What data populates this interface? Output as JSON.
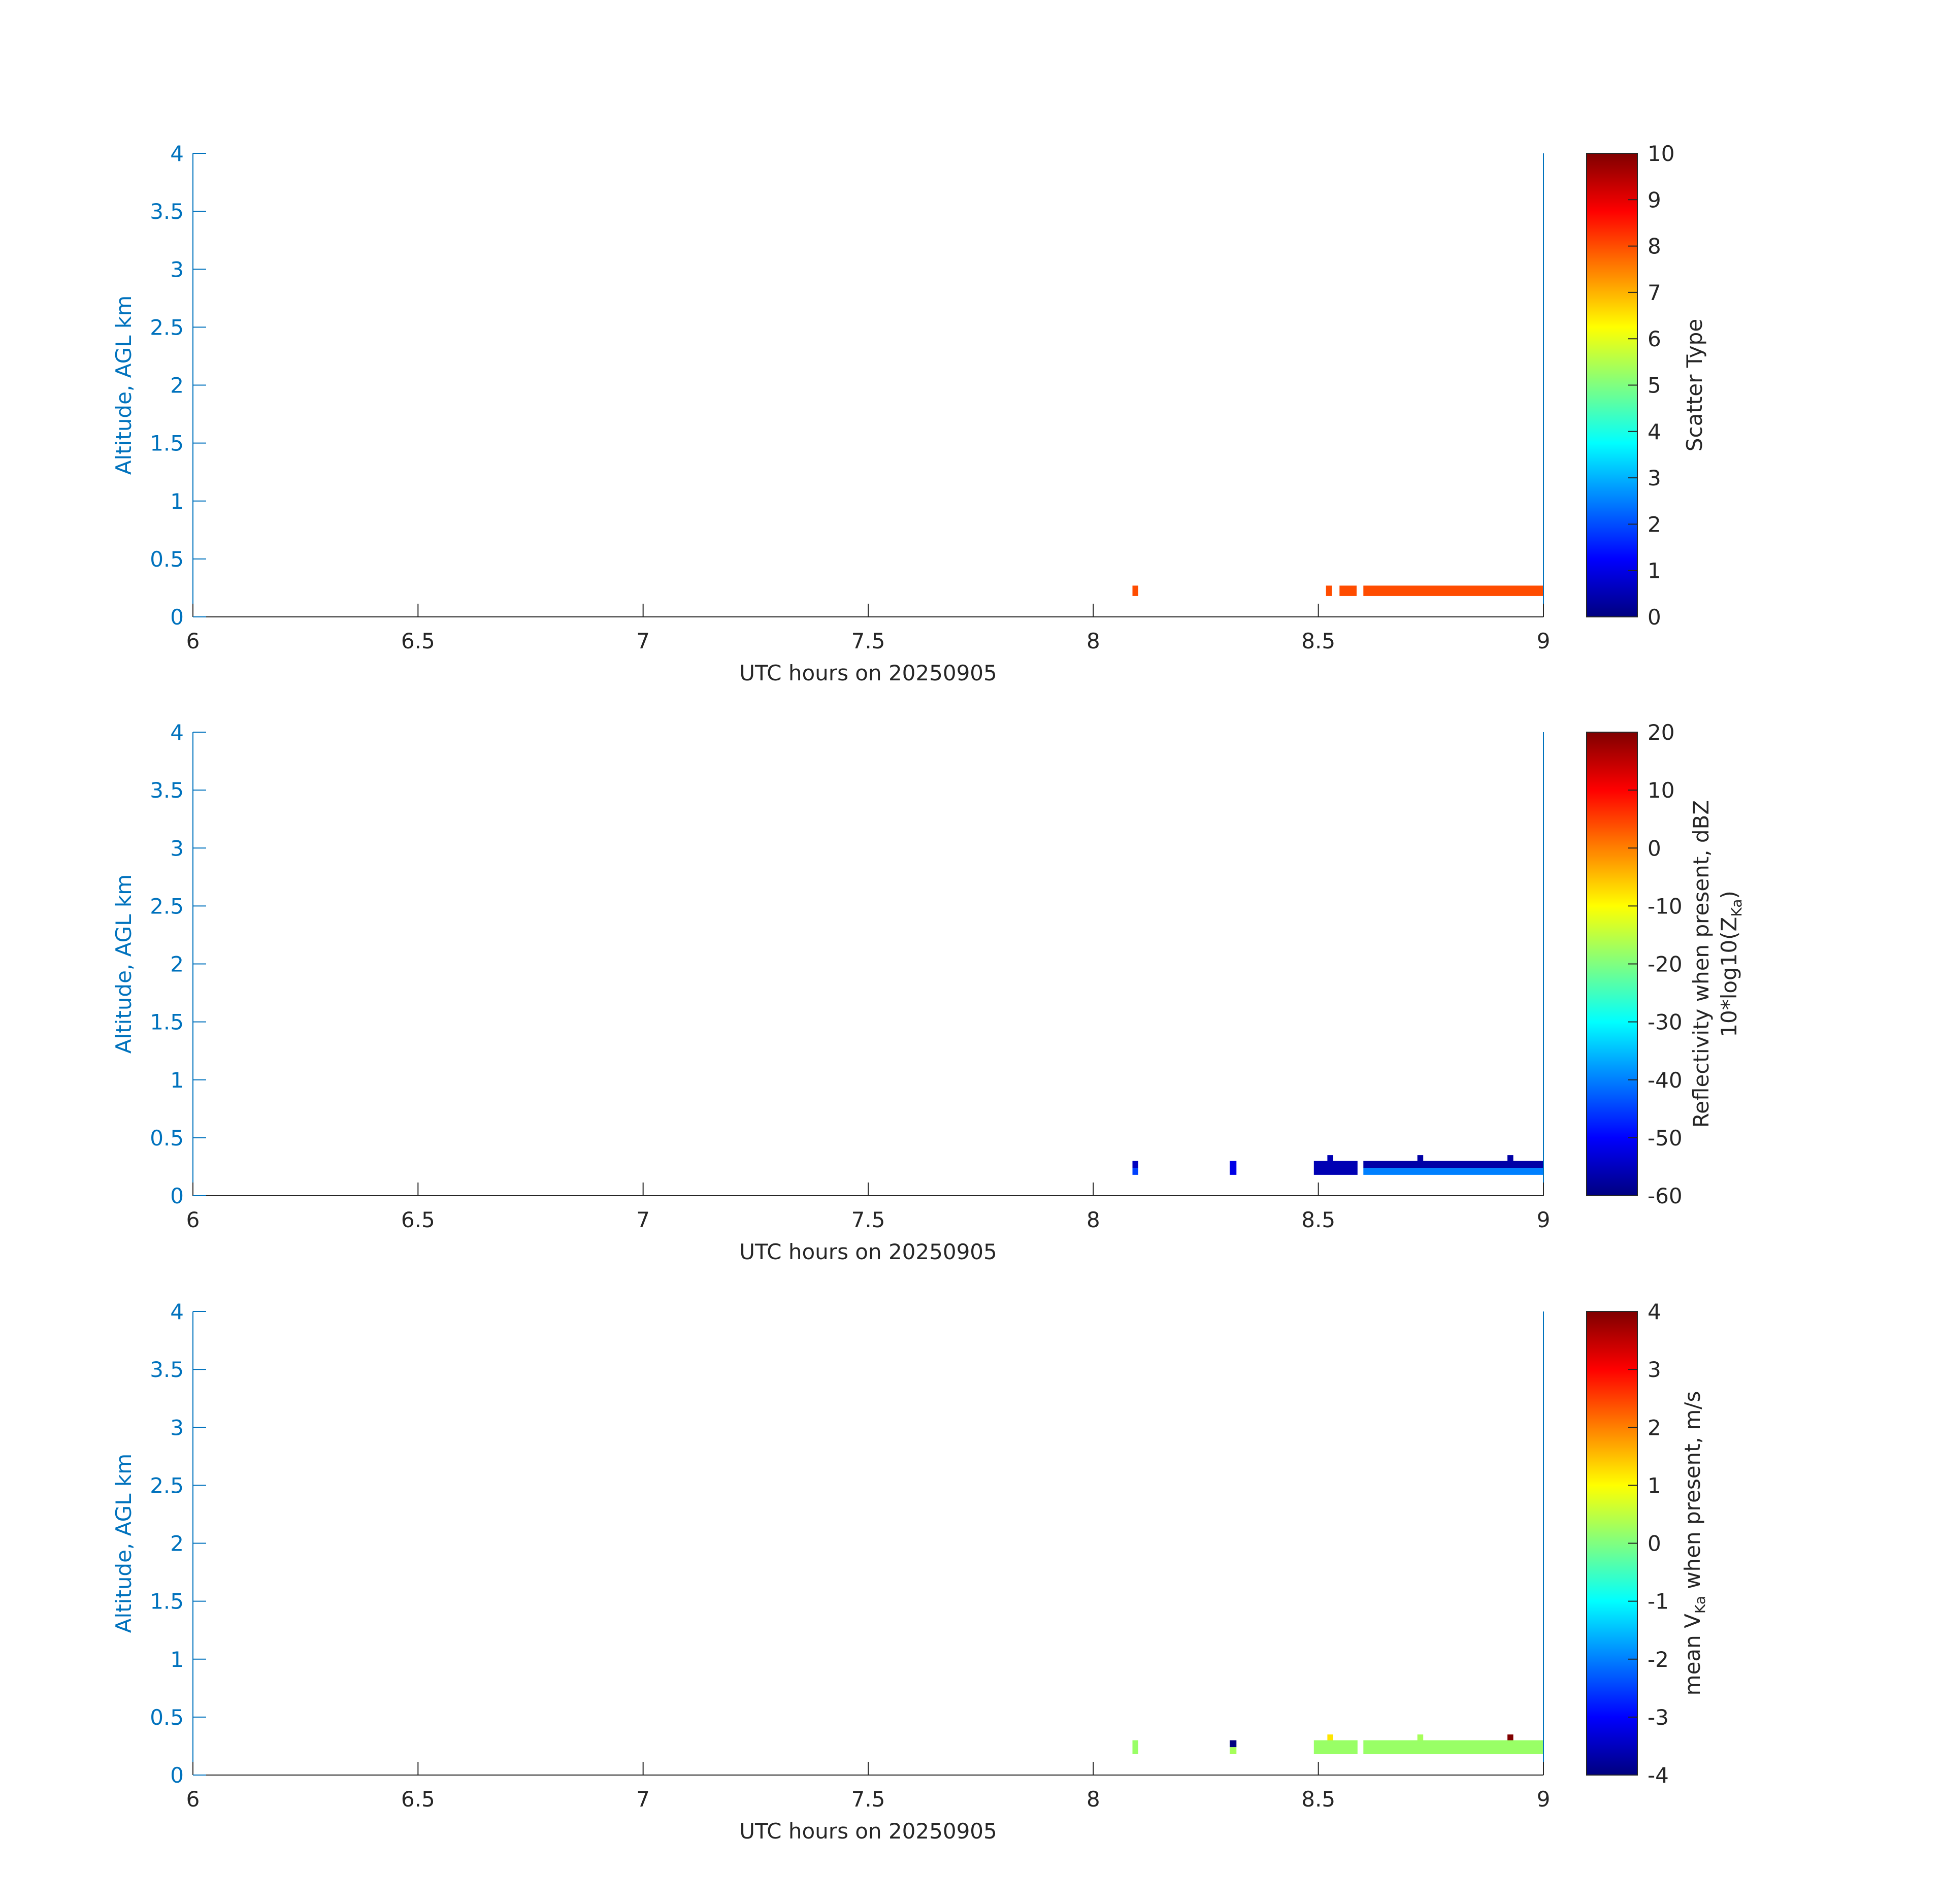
{
  "colors": {
    "axis_blue": "#0072BD",
    "axis_dark": "#262626",
    "colormap": "jet"
  },
  "chart_data": [
    {
      "type": "heatmap",
      "title": "",
      "xlabel": "UTC hours on 20250905",
      "ylabel": "Altitude, AGL km",
      "xlim": [
        6,
        9
      ],
      "ylim": [
        0,
        4
      ],
      "xticks": [
        "6",
        "6.5",
        "7",
        "7.5",
        "8",
        "8.5",
        "9"
      ],
      "yticks": [
        "0",
        "0.5",
        "1",
        "1.5",
        "2",
        "2.5",
        "3",
        "3.5",
        "4"
      ],
      "colorbar": {
        "label": "Scatter Type",
        "clim": [
          0,
          10
        ],
        "ticks": [
          "0",
          "1",
          "2",
          "3",
          "4",
          "5",
          "6",
          "7",
          "8",
          "9",
          "10"
        ]
      },
      "cells": [
        {
          "t0": 8.087,
          "t1": 8.1,
          "z0": 0.18,
          "z1": 0.27,
          "v": 8
        },
        {
          "t0": 8.517,
          "t1": 8.53,
          "z0": 0.18,
          "z1": 0.27,
          "v": 8
        },
        {
          "t0": 8.547,
          "t1": 8.585,
          "z0": 0.18,
          "z1": 0.27,
          "v": 8
        },
        {
          "t0": 8.6,
          "t1": 9.0,
          "z0": 0.18,
          "z1": 0.27,
          "v": 8
        }
      ]
    },
    {
      "type": "heatmap",
      "title": "",
      "xlabel": "UTC hours on 20250905",
      "ylabel": "Altitude, AGL km",
      "xlim": [
        6,
        9
      ],
      "ylim": [
        0,
        4
      ],
      "xticks": [
        "6",
        "6.5",
        "7",
        "7.5",
        "8",
        "8.5",
        "9"
      ],
      "yticks": [
        "0",
        "0.5",
        "1",
        "1.5",
        "2",
        "2.5",
        "3",
        "3.5",
        "4"
      ],
      "colorbar": {
        "label": "Reflectivity when present, dBZ",
        "label2_main": "10*log10(Z",
        "label2_sub": "Ka",
        "label2_end": ")",
        "clim": [
          -60,
          20
        ],
        "ticks": [
          "-60",
          "-50",
          "-40",
          "-30",
          "-20",
          "-10",
          "0",
          "10",
          "20"
        ]
      },
      "cells": [
        {
          "t0": 8.087,
          "t1": 8.1,
          "z0": 0.24,
          "z1": 0.3,
          "v": -55
        },
        {
          "t0": 8.087,
          "t1": 8.1,
          "z0": 0.18,
          "z1": 0.24,
          "v": -45
        },
        {
          "t0": 8.303,
          "t1": 8.318,
          "z0": 0.18,
          "z1": 0.3,
          "v": -52
        },
        {
          "t0": 8.49,
          "t1": 8.587,
          "z0": 0.18,
          "z1": 0.3,
          "v": -56
        },
        {
          "t0": 8.52,
          "t1": 8.533,
          "z0": 0.3,
          "z1": 0.35,
          "v": -56
        },
        {
          "t0": 8.6,
          "t1": 9.0,
          "z0": 0.24,
          "z1": 0.3,
          "v": -57
        },
        {
          "t0": 8.6,
          "t1": 9.0,
          "z0": 0.18,
          "z1": 0.24,
          "v": -40
        },
        {
          "t0": 8.72,
          "t1": 8.733,
          "z0": 0.3,
          "z1": 0.35,
          "v": -57
        },
        {
          "t0": 8.92,
          "t1": 8.933,
          "z0": 0.3,
          "z1": 0.35,
          "v": -57
        }
      ]
    },
    {
      "type": "heatmap",
      "title": "",
      "xlabel": "UTC hours on 20250905",
      "ylabel": "Altitude, AGL km",
      "xlim": [
        6,
        9
      ],
      "ylim": [
        0,
        4
      ],
      "xticks": [
        "6",
        "6.5",
        "7",
        "7.5",
        "8",
        "8.5",
        "9"
      ],
      "yticks": [
        "0",
        "0.5",
        "1",
        "1.5",
        "2",
        "2.5",
        "3",
        "3.5",
        "4"
      ],
      "colorbar": {
        "label_pre": "mean V",
        "label_sub": "Ka",
        "label_post": " when present, m/s",
        "clim": [
          -4,
          4
        ],
        "ticks": [
          "-4",
          "-3",
          "-2",
          "-1",
          "0",
          "1",
          "2",
          "3",
          "4"
        ]
      },
      "cells": [
        {
          "t0": 8.087,
          "t1": 8.1,
          "z0": 0.18,
          "z1": 0.3,
          "v": 0.2
        },
        {
          "t0": 8.303,
          "t1": 8.318,
          "z0": 0.24,
          "z1": 0.3,
          "v": -4
        },
        {
          "t0": 8.303,
          "t1": 8.318,
          "z0": 0.18,
          "z1": 0.24,
          "v": 0.3
        },
        {
          "t0": 8.49,
          "t1": 8.587,
          "z0": 0.18,
          "z1": 0.3,
          "v": 0.2
        },
        {
          "t0": 8.52,
          "t1": 8.533,
          "z0": 0.3,
          "z1": 0.35,
          "v": 1.2
        },
        {
          "t0": 8.6,
          "t1": 9.0,
          "z0": 0.18,
          "z1": 0.3,
          "v": 0.2
        },
        {
          "t0": 8.72,
          "t1": 8.733,
          "z0": 0.3,
          "z1": 0.35,
          "v": 0.3
        },
        {
          "t0": 8.92,
          "t1": 8.933,
          "z0": 0.3,
          "z1": 0.35,
          "v": 4
        }
      ]
    }
  ]
}
